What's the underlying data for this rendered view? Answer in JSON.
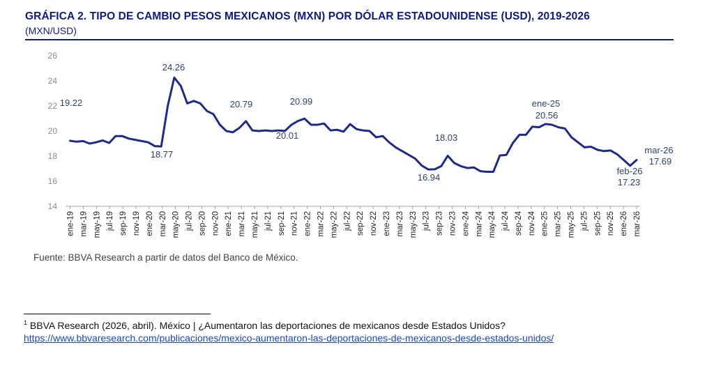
{
  "title": "GRÁFICA 2. TIPO DE CAMBIO PESOS MEXICANOS (MXN) POR DÓLAR ESTADOUNIDENSE (USD), 2019-2026",
  "subtitle": "(MXN/USD)",
  "source": "Fuente: BBVA Research a partir de datos del Banco de México.",
  "footnote": {
    "marker": "1",
    "text": " BBVA Research (2026, abril). México | ¿Aumentaron las deportaciones de mexicanos desde Estados Unidos?",
    "link": "https://www.bbvaresearch.com/publicaciones/mexico-aumentaron-las-deportaciones-de-mexicanos-desde-estados-unidos/"
  },
  "chart_data": {
    "type": "line",
    "ylim": [
      14,
      26
    ],
    "yticks": [
      14,
      16,
      18,
      20,
      22,
      24,
      26
    ],
    "grid": false,
    "line_color": "#1c2a8c",
    "x_tick_labels": [
      "ene-19",
      "mar-19",
      "may-19",
      "jul-19",
      "sep-19",
      "nov-19",
      "ene-20",
      "mar-20",
      "may-20",
      "jul-20",
      "sep-20",
      "nov-20",
      "ene-21",
      "mar-21",
      "may-21",
      "jul-21",
      "sep-21",
      "nov-21",
      "ene-22",
      "mar-22",
      "may-22",
      "jul-22",
      "sep-22",
      "nov-22",
      "ene-23",
      "mar-23",
      "may-23",
      "jul-23",
      "sep-23",
      "nov-23",
      "ene-24",
      "mar-24",
      "may-24",
      "jul-24",
      "sep-24",
      "nov-24",
      "ene-25",
      "mar-25",
      "may-25",
      "jul-25",
      "sep-25",
      "nov-25",
      "ene-26",
      "mar-26"
    ],
    "series": [
      {
        "values": [
          19.22,
          19.15,
          19.2,
          19.0,
          19.1,
          19.25,
          19.05,
          19.6,
          19.6,
          19.4,
          19.3,
          19.2,
          19.1,
          18.8,
          18.77,
          22.0,
          24.26,
          23.6,
          22.2,
          22.4,
          22.2,
          21.6,
          21.35,
          20.5,
          20.0,
          19.9,
          20.25,
          20.79,
          20.05,
          20.0,
          20.05,
          20.0,
          20.05,
          20.01,
          20.5,
          20.8,
          20.99,
          20.5,
          20.5,
          20.6,
          20.05,
          20.1,
          19.95,
          20.55,
          20.15,
          20.05,
          20.0,
          19.5,
          19.6,
          19.1,
          18.7,
          18.4,
          18.1,
          17.8,
          17.25,
          16.94,
          16.95,
          17.2,
          18.03,
          17.45,
          17.2,
          17.05,
          17.1,
          16.8,
          16.75,
          16.75,
          18.05,
          18.1,
          19.05,
          19.7,
          19.7,
          20.35,
          20.3,
          20.56,
          20.5,
          20.3,
          20.2,
          19.5,
          19.1,
          18.7,
          18.75,
          18.5,
          18.4,
          18.45,
          18.15,
          17.7,
          17.23,
          17.69
        ]
      }
    ],
    "annotations": [
      {
        "text": "19.22"
      },
      {
        "text": "18.77"
      },
      {
        "text": "24.26"
      },
      {
        "text": "20.79"
      },
      {
        "text": "20.01"
      },
      {
        "text": "20.99"
      },
      {
        "text": "16.94"
      },
      {
        "text": "18.03"
      },
      {
        "text": "ene-25"
      },
      {
        "text": "20.56"
      },
      {
        "text": "feb-26"
      },
      {
        "text": "17.23"
      },
      {
        "text": "mar-26"
      },
      {
        "text": "17.69"
      }
    ]
  }
}
